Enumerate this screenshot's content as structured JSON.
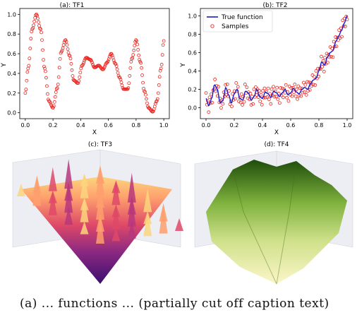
{
  "caption": "(a) ... functions ... (partially cut off caption text)",
  "chart_data": [
    {
      "type": "scatter",
      "title": "(a): TF1",
      "xlabel": "X",
      "ylabel": "Y",
      "xlim": [
        -0.04,
        1.04
      ],
      "ylim": [
        -0.06,
        1.06
      ],
      "xticks": [
        "0.0",
        "0.2",
        "0.4",
        "0.6",
        "0.8",
        "1.0"
      ],
      "yticks": [
        "0.0",
        "0.2",
        "0.4",
        "0.6",
        "0.8",
        "1.0"
      ],
      "marker_color": "#e8251f",
      "curve_points": [
        [
          0.0,
          0.2
        ],
        [
          0.02,
          0.45
        ],
        [
          0.05,
          0.85
        ],
        [
          0.08,
          1.0
        ],
        [
          0.11,
          0.85
        ],
        [
          0.14,
          0.45
        ],
        [
          0.17,
          0.12
        ],
        [
          0.2,
          0.05
        ],
        [
          0.23,
          0.25
        ],
        [
          0.26,
          0.62
        ],
        [
          0.29,
          0.74
        ],
        [
          0.32,
          0.58
        ],
        [
          0.35,
          0.33
        ],
        [
          0.38,
          0.3
        ],
        [
          0.41,
          0.48
        ],
        [
          0.44,
          0.56
        ],
        [
          0.47,
          0.54
        ],
        [
          0.5,
          0.46
        ],
        [
          0.53,
          0.48
        ],
        [
          0.56,
          0.44
        ],
        [
          0.59,
          0.51
        ],
        [
          0.62,
          0.6
        ],
        [
          0.65,
          0.5
        ],
        [
          0.68,
          0.36
        ],
        [
          0.71,
          0.24
        ],
        [
          0.74,
          0.24
        ],
        [
          0.77,
          0.55
        ],
        [
          0.8,
          0.74
        ],
        [
          0.83,
          0.52
        ],
        [
          0.86,
          0.22
        ],
        [
          0.89,
          0.05
        ],
        [
          0.92,
          0.01
        ],
        [
          0.95,
          0.12
        ],
        [
          0.98,
          0.45
        ],
        [
          1.0,
          0.73
        ]
      ]
    },
    {
      "type": "line+scatter",
      "title": "(b): TF2",
      "xlabel": "X",
      "ylabel": "Y",
      "xlim": [
        -0.04,
        1.04
      ],
      "ylim": [
        -0.12,
        1.08
      ],
      "xticks": [
        "0.0",
        "0.2",
        "0.4",
        "0.6",
        "0.8",
        "1.0"
      ],
      "yticks": [
        "0.0",
        "0.2",
        "0.4",
        "0.6",
        "0.8",
        "1.0"
      ],
      "legend": [
        "True function",
        "Samples"
      ],
      "legend_position": "top-left",
      "line_color": "#1a1acc",
      "marker_color": "#e8251f",
      "true_function": [
        [
          0.0,
          0.1
        ],
        [
          0.02,
          0.02
        ],
        [
          0.04,
          0.1
        ],
        [
          0.06,
          0.25
        ],
        [
          0.08,
          0.2
        ],
        [
          0.1,
          0.05
        ],
        [
          0.12,
          0.08
        ],
        [
          0.14,
          0.22
        ],
        [
          0.16,
          0.14
        ],
        [
          0.18,
          0.05
        ],
        [
          0.2,
          0.15
        ],
        [
          0.22,
          0.2
        ],
        [
          0.24,
          0.1
        ],
        [
          0.26,
          0.08
        ],
        [
          0.28,
          0.18
        ],
        [
          0.3,
          0.16
        ],
        [
          0.32,
          0.08
        ],
        [
          0.34,
          0.12
        ],
        [
          0.36,
          0.2
        ],
        [
          0.38,
          0.12
        ],
        [
          0.4,
          0.1
        ],
        [
          0.42,
          0.17
        ],
        [
          0.44,
          0.15
        ],
        [
          0.46,
          0.11
        ],
        [
          0.48,
          0.18
        ],
        [
          0.5,
          0.16
        ],
        [
          0.52,
          0.12
        ],
        [
          0.54,
          0.16
        ],
        [
          0.56,
          0.2
        ],
        [
          0.58,
          0.14
        ],
        [
          0.6,
          0.16
        ],
        [
          0.62,
          0.21
        ],
        [
          0.64,
          0.17
        ],
        [
          0.66,
          0.15
        ],
        [
          0.68,
          0.2
        ],
        [
          0.7,
          0.22
        ],
        [
          0.72,
          0.2
        ],
        [
          0.74,
          0.26
        ],
        [
          0.76,
          0.3
        ],
        [
          0.78,
          0.32
        ],
        [
          0.8,
          0.4
        ],
        [
          0.82,
          0.5
        ],
        [
          0.84,
          0.46
        ],
        [
          0.86,
          0.55
        ],
        [
          0.88,
          0.6
        ],
        [
          0.9,
          0.62
        ],
        [
          0.92,
          0.72
        ],
        [
          0.94,
          0.78
        ],
        [
          0.96,
          0.84
        ],
        [
          0.98,
          0.92
        ],
        [
          1.0,
          1.0
        ]
      ]
    },
    {
      "type": "surface3d",
      "title": "(c): TF3",
      "colormap": [
        "#3b0f70",
        "#8c2981",
        "#de4968",
        "#fe9f6d",
        "#fcfdbf"
      ]
    },
    {
      "type": "surface3d",
      "title": "(d): TF4",
      "colormap": [
        "#f7f7c6",
        "#d6e38a",
        "#8fbf45",
        "#4a8a1c",
        "#1e4d0a"
      ]
    }
  ]
}
